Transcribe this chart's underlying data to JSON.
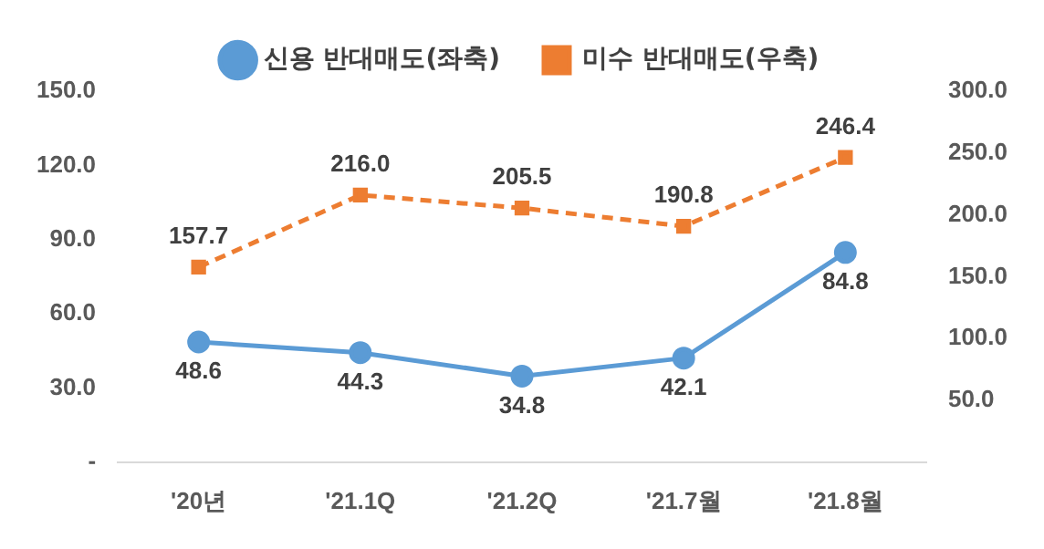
{
  "chart_data": {
    "type": "line",
    "categories": [
      "'20년",
      "'21.1Q",
      "'21.2Q",
      "'21.7월",
      "'21.8월"
    ],
    "series": [
      {
        "name": "신용 반대매도(좌축)",
        "color": "#5b9bd5",
        "values": [
          48.6,
          44.3,
          34.8,
          42.1,
          84.8
        ],
        "value_labels": [
          "48.6",
          "44.3",
          "34.8",
          "42.1",
          "84.8"
        ],
        "marker": "circle",
        "line_style": "solid"
      },
      {
        "name": "미수 반대매도(우축)",
        "color": "#ed7d31",
        "values": [
          157.7,
          216.0,
          205.5,
          190.8,
          246.4
        ],
        "value_labels": [
          "157.7",
          "216.0",
          "205.5",
          "190.8",
          "246.4"
        ],
        "axis": "y2",
        "marker": "square",
        "line_style": "dashed"
      }
    ],
    "ylim": [
      0,
      150
    ],
    "yticks": [
      {
        "value": 0,
        "label": "-"
      },
      {
        "value": 30,
        "label": "30.0"
      },
      {
        "value": 60,
        "label": "60.0"
      },
      {
        "value": 90,
        "label": "90.0"
      },
      {
        "value": 120,
        "label": "120.0"
      },
      {
        "value": 150,
        "label": "150.0"
      }
    ],
    "y2lim": [
      0,
      300
    ],
    "y2ticks": [
      {
        "value": 50,
        "label": "50.0"
      },
      {
        "value": 100,
        "label": "100.0"
      },
      {
        "value": 150,
        "label": "150.0"
      },
      {
        "value": 200,
        "label": "200.0"
      },
      {
        "value": 250,
        "label": "250.0"
      },
      {
        "value": 300,
        "label": "300.0"
      }
    ],
    "grid": false,
    "legend": "top"
  }
}
